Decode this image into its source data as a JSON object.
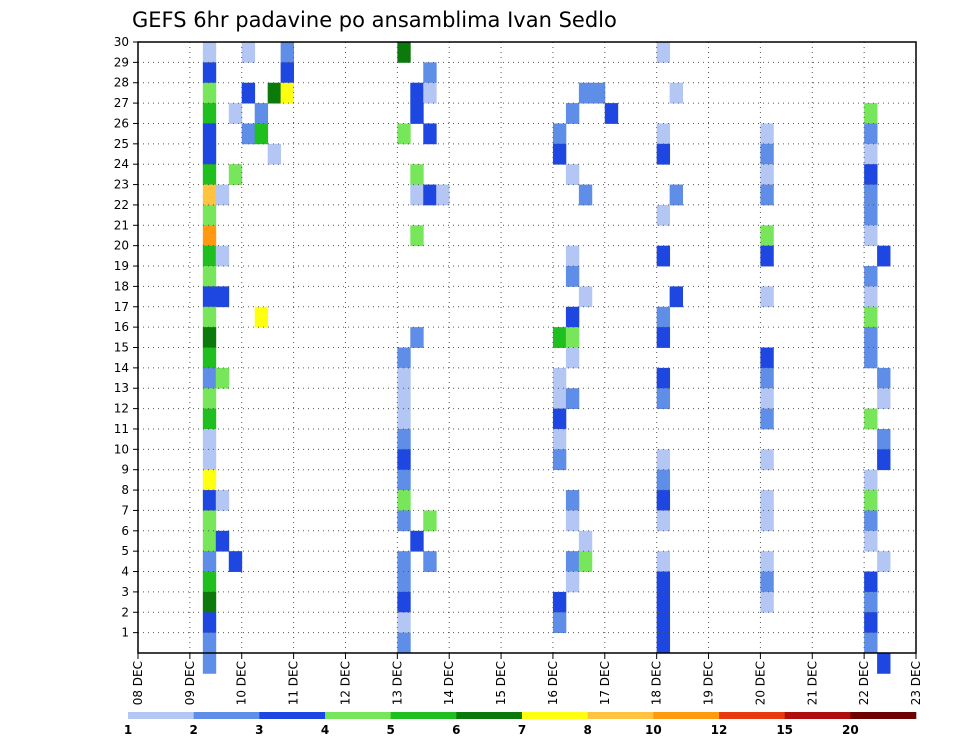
{
  "chart_data": {
    "type": "heatmap",
    "title": "GEFS 6hr padavine po ansamblima Ivan Sedlo",
    "xlabel": "",
    "ylabel": "",
    "x_tick_labels": [
      "08 DEC",
      "09 DEC",
      "10 DEC",
      "11 DEC",
      "12 DEC",
      "13 DEC",
      "14 DEC",
      "15 DEC",
      "16 DEC",
      "17 DEC",
      "18 DEC",
      "19 DEC",
      "20 DEC",
      "21 DEC",
      "22 DEC",
      "23 DEC"
    ],
    "y_tick_labels": [
      "1",
      "2",
      "3",
      "4",
      "5",
      "6",
      "7",
      "8",
      "9",
      "10",
      "11",
      "12",
      "13",
      "14",
      "15",
      "16",
      "17",
      "18",
      "19",
      "20",
      "21",
      "22",
      "23",
      "24",
      "25",
      "26",
      "27",
      "28",
      "29",
      "30"
    ],
    "x_range": [
      "08 DEC",
      "23 DEC"
    ],
    "time_step_hours": 6,
    "y_range": [
      0,
      30
    ],
    "grid": true,
    "legend_position": "bottom",
    "legend_label_values": [
      "1",
      "2",
      "3",
      "4",
      "5",
      "6",
      "7",
      "8",
      "10",
      "12",
      "15",
      "20"
    ],
    "colors": [
      "#b4c7f4",
      "#5f8ee8",
      "#1e46e1",
      "#78e65a",
      "#1fbf1f",
      "#0b7a0b",
      "#ffff10",
      "#ffc340",
      "#ff9a10",
      "#e83a10",
      "#b00e0e",
      "#6e0000"
    ],
    "cells": [
      [
        0,
        30,
        5,
        0
      ],
      [
        0,
        30,
        8,
        0
      ],
      [
        0,
        30,
        11,
        1
      ],
      [
        0,
        29,
        5,
        2
      ],
      [
        0,
        29,
        11,
        2
      ],
      [
        0,
        28,
        5,
        3
      ],
      [
        0,
        28,
        8,
        2
      ],
      [
        0,
        28,
        10,
        5
      ],
      [
        0,
        28,
        11,
        6
      ],
      [
        0,
        27,
        5,
        4
      ],
      [
        0,
        27,
        7,
        0
      ],
      [
        0,
        27,
        9,
        1
      ],
      [
        0,
        26,
        5,
        2
      ],
      [
        0,
        26,
        8,
        1
      ],
      [
        0,
        26,
        9,
        4
      ],
      [
        0,
        25,
        5,
        2
      ],
      [
        0,
        25,
        10,
        0
      ],
      [
        0,
        24,
        5,
        4
      ],
      [
        0,
        24,
        7,
        3
      ],
      [
        0,
        23,
        5,
        7
      ],
      [
        0,
        23,
        6,
        0
      ],
      [
        0,
        22,
        5,
        3
      ],
      [
        0,
        21,
        5,
        8
      ],
      [
        0,
        20,
        5,
        4
      ],
      [
        0,
        20,
        6,
        0
      ],
      [
        0,
        19,
        5,
        3
      ],
      [
        0,
        18,
        5,
        2
      ],
      [
        0,
        18,
        6,
        2
      ],
      [
        0,
        17,
        5,
        3
      ],
      [
        0,
        17,
        9,
        6
      ],
      [
        0,
        16,
        5,
        5
      ],
      [
        0,
        15,
        5,
        4
      ],
      [
        0,
        14,
        5,
        1
      ],
      [
        0,
        14,
        6,
        3
      ],
      [
        0,
        13,
        5,
        3
      ],
      [
        0,
        12,
        5,
        4
      ],
      [
        0,
        11,
        5,
        0
      ],
      [
        0,
        10,
        5,
        0
      ],
      [
        0,
        9,
        5,
        6
      ],
      [
        0,
        8,
        5,
        2
      ],
      [
        0,
        8,
        6,
        0
      ],
      [
        0,
        7,
        5,
        3
      ],
      [
        0,
        6,
        5,
        3
      ],
      [
        0,
        6,
        6,
        2
      ],
      [
        0,
        5,
        5,
        1
      ],
      [
        0,
        5,
        7,
        2
      ],
      [
        0,
        4,
        5,
        4
      ],
      [
        0,
        3,
        5,
        5
      ],
      [
        0,
        2,
        5,
        2
      ],
      [
        0,
        1,
        5,
        1
      ],
      [
        0,
        0,
        5,
        1
      ],
      [
        1,
        30,
        16,
        5
      ],
      [
        1,
        29,
        18,
        1
      ],
      [
        1,
        28,
        17,
        2
      ],
      [
        1,
        28,
        18,
        0
      ],
      [
        1,
        27,
        17,
        2
      ],
      [
        1,
        26,
        16,
        3
      ],
      [
        1,
        26,
        18,
        2
      ],
      [
        1,
        24,
        17,
        3
      ],
      [
        1,
        23,
        17,
        0
      ],
      [
        1,
        23,
        18,
        2
      ],
      [
        1,
        23,
        19,
        0
      ],
      [
        1,
        21,
        17,
        3
      ],
      [
        1,
        16,
        17,
        1
      ],
      [
        1,
        15,
        16,
        1
      ],
      [
        1,
        14,
        16,
        0
      ],
      [
        1,
        13,
        16,
        0
      ],
      [
        1,
        12,
        16,
        0
      ],
      [
        1,
        11,
        16,
        1
      ],
      [
        1,
        10,
        16,
        2
      ],
      [
        1,
        9,
        16,
        1
      ],
      [
        1,
        8,
        16,
        3
      ],
      [
        1,
        7,
        16,
        1
      ],
      [
        1,
        7,
        18,
        3
      ],
      [
        1,
        6,
        17,
        2
      ],
      [
        1,
        5,
        16,
        1
      ],
      [
        1,
        5,
        18,
        1
      ],
      [
        1,
        4,
        16,
        1
      ],
      [
        1,
        3,
        16,
        2
      ],
      [
        1,
        2,
        16,
        0
      ],
      [
        1,
        1,
        16,
        1
      ],
      [
        2,
        28,
        26,
        1
      ],
      [
        2,
        28,
        27,
        1
      ],
      [
        2,
        27,
        25,
        1
      ],
      [
        2,
        27,
        28,
        2
      ],
      [
        2,
        26,
        24,
        1
      ],
      [
        2,
        25,
        24,
        2
      ],
      [
        2,
        24,
        25,
        0
      ],
      [
        2,
        23,
        26,
        1
      ],
      [
        2,
        20,
        25,
        0
      ],
      [
        2,
        19,
        25,
        1
      ],
      [
        2,
        18,
        26,
        0
      ],
      [
        2,
        17,
        25,
        2
      ],
      [
        2,
        16,
        24,
        4
      ],
      [
        2,
        16,
        25,
        3
      ],
      [
        2,
        15,
        25,
        0
      ],
      [
        2,
        14,
        24,
        0
      ],
      [
        2,
        13,
        24,
        0
      ],
      [
        2,
        13,
        25,
        1
      ],
      [
        2,
        12,
        24,
        2
      ],
      [
        2,
        11,
        24,
        0
      ],
      [
        2,
        10,
        24,
        1
      ],
      [
        2,
        8,
        25,
        1
      ],
      [
        2,
        7,
        25,
        0
      ],
      [
        2,
        6,
        26,
        0
      ],
      [
        2,
        5,
        25,
        1
      ],
      [
        2,
        5,
        26,
        3
      ],
      [
        2,
        4,
        25,
        0
      ],
      [
        2,
        3,
        24,
        2
      ],
      [
        2,
        2,
        24,
        1
      ],
      [
        3,
        30,
        28,
        0
      ],
      [
        3,
        28,
        29,
        0
      ],
      [
        3,
        26,
        28,
        0
      ],
      [
        3,
        25,
        28,
        2
      ],
      [
        3,
        23,
        29,
        1
      ],
      [
        3,
        22,
        28,
        0
      ],
      [
        3,
        20,
        28,
        2
      ],
      [
        3,
        18,
        29,
        2
      ],
      [
        3,
        17,
        28,
        1
      ],
      [
        3,
        16,
        28,
        2
      ],
      [
        3,
        14,
        28,
        2
      ],
      [
        3,
        13,
        28,
        1
      ],
      [
        3,
        10,
        28,
        0
      ],
      [
        3,
        9,
        28,
        1
      ],
      [
        3,
        8,
        28,
        2
      ],
      [
        3,
        7,
        28,
        0
      ],
      [
        3,
        5,
        28,
        0
      ],
      [
        3,
        4,
        28,
        2
      ],
      [
        3,
        3,
        28,
        2
      ],
      [
        3,
        2,
        28,
        2
      ],
      [
        3,
        1,
        28,
        2
      ],
      [
        4,
        26,
        32,
        0
      ],
      [
        4,
        25,
        32,
        1
      ],
      [
        4,
        24,
        32,
        0
      ],
      [
        4,
        23,
        32,
        1
      ],
      [
        4,
        21,
        32,
        3
      ],
      [
        4,
        20,
        32,
        2
      ],
      [
        4,
        18,
        32,
        0
      ],
      [
        4,
        15,
        32,
        2
      ],
      [
        4,
        14,
        32,
        1
      ],
      [
        4,
        13,
        32,
        0
      ],
      [
        4,
        12,
        32,
        1
      ],
      [
        4,
        10,
        32,
        0
      ],
      [
        4,
        8,
        32,
        0
      ],
      [
        4,
        7,
        32,
        0
      ],
      [
        4,
        5,
        32,
        0
      ],
      [
        4,
        4,
        32,
        1
      ],
      [
        4,
        3,
        32,
        0
      ],
      [
        5,
        27,
        36,
        3
      ],
      [
        5,
        26,
        36,
        1
      ],
      [
        5,
        25,
        36,
        0
      ],
      [
        5,
        24,
        36,
        2
      ],
      [
        5,
        23,
        36,
        1
      ],
      [
        5,
        22,
        36,
        1
      ],
      [
        5,
        21,
        36,
        0
      ],
      [
        5,
        20,
        37,
        2
      ],
      [
        5,
        19,
        36,
        1
      ],
      [
        5,
        18,
        36,
        0
      ],
      [
        5,
        17,
        36,
        3
      ],
      [
        5,
        16,
        36,
        1
      ],
      [
        5,
        15,
        36,
        1
      ],
      [
        5,
        14,
        37,
        1
      ],
      [
        5,
        13,
        37,
        0
      ],
      [
        5,
        12,
        36,
        3
      ],
      [
        5,
        11,
        37,
        1
      ],
      [
        5,
        10,
        37,
        2
      ],
      [
        5,
        9,
        36,
        0
      ],
      [
        5,
        8,
        36,
        3
      ],
      [
        5,
        7,
        36,
        1
      ],
      [
        5,
        6,
        36,
        0
      ],
      [
        5,
        5,
        37,
        0
      ],
      [
        5,
        4,
        36,
        2
      ],
      [
        5,
        3,
        36,
        1
      ],
      [
        5,
        2,
        36,
        2
      ],
      [
        5,
        1,
        36,
        1
      ],
      [
        5,
        0,
        37,
        2
      ],
      [
        6,
        28,
        44,
        6
      ],
      [
        6,
        27,
        43,
        1
      ],
      [
        6,
        24,
        42,
        5
      ],
      [
        6,
        23,
        42,
        7
      ],
      [
        6,
        22,
        42,
        4
      ],
      [
        6,
        21,
        42,
        5
      ],
      [
        6,
        20,
        42,
        4
      ],
      [
        6,
        18,
        42,
        3
      ],
      [
        6,
        16,
        42,
        4
      ],
      [
        6,
        15,
        42,
        0
      ],
      [
        6,
        14,
        42,
        2
      ],
      [
        6,
        13,
        42,
        3
      ],
      [
        6,
        12,
        42,
        1
      ],
      [
        6,
        11,
        42,
        4
      ],
      [
        6,
        10,
        42,
        0
      ],
      [
        6,
        9,
        42,
        5
      ],
      [
        6,
        8,
        42,
        5
      ],
      [
        6,
        7,
        42,
        3
      ],
      [
        6,
        6,
        42,
        1
      ],
      [
        6,
        5,
        42,
        0
      ],
      [
        6,
        4,
        42,
        3
      ],
      [
        6,
        3,
        42,
        1
      ],
      [
        6,
        2,
        42,
        7
      ],
      [
        6,
        1,
        42,
        0
      ],
      [
        6,
        0,
        42,
        4
      ],
      [
        7,
        28,
        52,
        4
      ],
      [
        7,
        27,
        53,
        1
      ],
      [
        7,
        26,
        54,
        3
      ],
      [
        7,
        25,
        53,
        10
      ],
      [
        7,
        24,
        53,
        2
      ],
      [
        7,
        23,
        54,
        8
      ],
      [
        7,
        22,
        53,
        1
      ],
      [
        7,
        21,
        54,
        0
      ],
      [
        7,
        20,
        53,
        0
      ],
      [
        7,
        19,
        52,
        2
      ],
      [
        7,
        18,
        52,
        11
      ],
      [
        7,
        17,
        53,
        4
      ],
      [
        7,
        16,
        52,
        8
      ],
      [
        7,
        15,
        53,
        6
      ],
      [
        7,
        14,
        53,
        3
      ],
      [
        7,
        13,
        52,
        9
      ],
      [
        7,
        12,
        52,
        3
      ],
      [
        7,
        11,
        53,
        1
      ],
      [
        7,
        10,
        52,
        2
      ],
      [
        7,
        9,
        53,
        3
      ],
      [
        7,
        8,
        52,
        5
      ],
      [
        7,
        7,
        53,
        2
      ],
      [
        7,
        6,
        52,
        10
      ],
      [
        7,
        5,
        53,
        3
      ],
      [
        7,
        4,
        53,
        1
      ],
      [
        7,
        3,
        53,
        1
      ],
      [
        7,
        2,
        53,
        0
      ],
      [
        7,
        1,
        52,
        6
      ],
      [
        7,
        0,
        53,
        4
      ]
    ]
  }
}
